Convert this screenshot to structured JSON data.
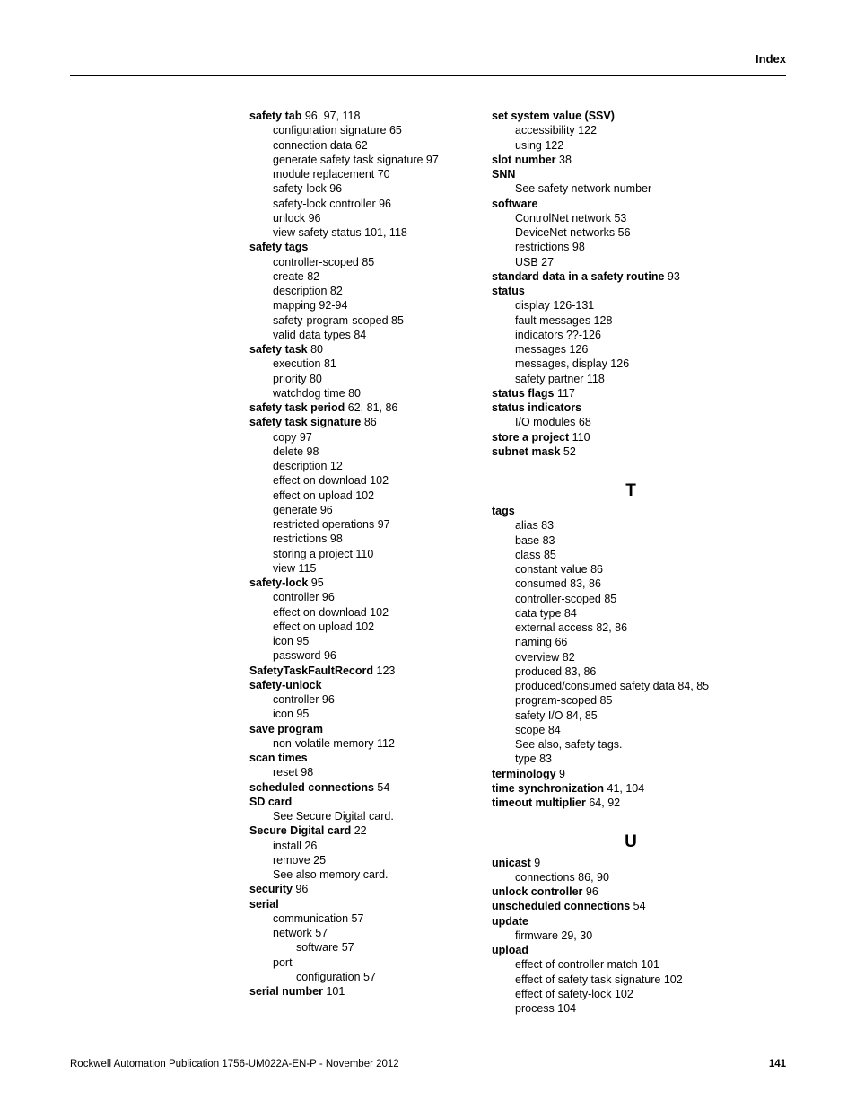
{
  "header": {
    "label": "Index"
  },
  "footer": {
    "text": "Rockwell Automation Publication 1756-UM022A-EN-P - November 2012",
    "page": "141"
  },
  "left": [
    {
      "lvl": 0,
      "term": "safety tab",
      "pages": " 96, 97, 118"
    },
    {
      "lvl": 1,
      "text": "configuration signature 65"
    },
    {
      "lvl": 1,
      "text": "connection data 62"
    },
    {
      "lvl": 1,
      "text": "generate safety task signature 97"
    },
    {
      "lvl": 1,
      "text": "module replacement 70"
    },
    {
      "lvl": 1,
      "text": "safety-lock 96"
    },
    {
      "lvl": 1,
      "text": "safety-lock controller 96"
    },
    {
      "lvl": 1,
      "text": "unlock 96"
    },
    {
      "lvl": 1,
      "text": "view safety status 101, 118"
    },
    {
      "lvl": 0,
      "term": "safety tags",
      "pages": ""
    },
    {
      "lvl": 1,
      "text": "controller-scoped 85"
    },
    {
      "lvl": 1,
      "text": "create 82"
    },
    {
      "lvl": 1,
      "text": "description 82"
    },
    {
      "lvl": 1,
      "text": "mapping 92-94"
    },
    {
      "lvl": 1,
      "text": "safety-program-scoped 85"
    },
    {
      "lvl": 1,
      "text": "valid data types 84"
    },
    {
      "lvl": 0,
      "term": "safety task",
      "pages": " 80"
    },
    {
      "lvl": 1,
      "text": "execution 81"
    },
    {
      "lvl": 1,
      "text": "priority 80"
    },
    {
      "lvl": 1,
      "text": "watchdog time 80"
    },
    {
      "lvl": 0,
      "term": "safety task period",
      "pages": " 62, 81, 86"
    },
    {
      "lvl": 0,
      "term": "safety task signature",
      "pages": " 86"
    },
    {
      "lvl": 1,
      "text": "copy 97"
    },
    {
      "lvl": 1,
      "text": "delete 98"
    },
    {
      "lvl": 1,
      "text": "description 12"
    },
    {
      "lvl": 1,
      "text": "effect on download 102"
    },
    {
      "lvl": 1,
      "text": "effect on upload 102"
    },
    {
      "lvl": 1,
      "text": "generate 96"
    },
    {
      "lvl": 1,
      "text": "restricted operations 97"
    },
    {
      "lvl": 1,
      "text": "restrictions 98"
    },
    {
      "lvl": 1,
      "text": "storing a project 110"
    },
    {
      "lvl": 1,
      "text": "view 115"
    },
    {
      "lvl": 0,
      "term": "safety-lock",
      "pages": " 95"
    },
    {
      "lvl": 1,
      "text": "controller 96"
    },
    {
      "lvl": 1,
      "text": "effect on download 102"
    },
    {
      "lvl": 1,
      "text": "effect on upload 102"
    },
    {
      "lvl": 1,
      "text": "icon 95"
    },
    {
      "lvl": 1,
      "text": "password 96"
    },
    {
      "lvl": 0,
      "term": "SafetyTaskFaultRecord",
      "pages": " 123"
    },
    {
      "lvl": 0,
      "term": "safety-unlock",
      "pages": ""
    },
    {
      "lvl": 1,
      "text": "controller 96"
    },
    {
      "lvl": 1,
      "text": "icon 95"
    },
    {
      "lvl": 0,
      "term": "save program",
      "pages": ""
    },
    {
      "lvl": 1,
      "text": "non-volatile memory 112"
    },
    {
      "lvl": 0,
      "term": "scan times",
      "pages": ""
    },
    {
      "lvl": 1,
      "text": "reset 98"
    },
    {
      "lvl": 0,
      "term": "scheduled connections",
      "pages": " 54"
    },
    {
      "lvl": 0,
      "term": "SD card",
      "pages": ""
    },
    {
      "lvl": 1,
      "text": "See Secure Digital card."
    },
    {
      "lvl": 0,
      "term": "Secure Digital card",
      "pages": " 22"
    },
    {
      "lvl": 1,
      "text": "install 26"
    },
    {
      "lvl": 1,
      "text": "remove 25"
    },
    {
      "lvl": 1,
      "text": "See also memory card."
    },
    {
      "lvl": 0,
      "term": "security",
      "pages": " 96"
    },
    {
      "lvl": 0,
      "term": "serial",
      "pages": ""
    },
    {
      "lvl": 1,
      "text": "communication 57"
    },
    {
      "lvl": 1,
      "text": "network 57"
    },
    {
      "lvl": 2,
      "text": "software 57"
    },
    {
      "lvl": 1,
      "text": "port"
    },
    {
      "lvl": 2,
      "text": "configuration 57"
    },
    {
      "lvl": 0,
      "term": "serial number",
      "pages": " 101"
    }
  ],
  "right": [
    {
      "lvl": 0,
      "term": "set system value (SSV)",
      "pages": ""
    },
    {
      "lvl": 1,
      "text": "accessibility 122"
    },
    {
      "lvl": 1,
      "text": "using 122"
    },
    {
      "lvl": 0,
      "term": "slot number",
      "pages": " 38"
    },
    {
      "lvl": 0,
      "term": "SNN",
      "pages": ""
    },
    {
      "lvl": 1,
      "text": "See safety network number"
    },
    {
      "lvl": 0,
      "term": "software",
      "pages": ""
    },
    {
      "lvl": 1,
      "text": "ControlNet network 53"
    },
    {
      "lvl": 1,
      "text": "DeviceNet networks 56"
    },
    {
      "lvl": 1,
      "text": "restrictions 98"
    },
    {
      "lvl": 1,
      "text": "USB 27"
    },
    {
      "lvl": 0,
      "term": "standard data in a safety routine",
      "pages": " 93"
    },
    {
      "lvl": 0,
      "term": "status",
      "pages": ""
    },
    {
      "lvl": 1,
      "text": "display 126-131"
    },
    {
      "lvl": 1,
      "text": "fault messages 128"
    },
    {
      "lvl": 1,
      "text": "indicators ??-126"
    },
    {
      "lvl": 1,
      "text": "messages 126"
    },
    {
      "lvl": 1,
      "text": "messages, display 126"
    },
    {
      "lvl": 1,
      "text": "safety partner 118"
    },
    {
      "lvl": 0,
      "term": "status flags",
      "pages": " 117"
    },
    {
      "lvl": 0,
      "term": "status indicators",
      "pages": ""
    },
    {
      "lvl": 1,
      "text": "I/O modules 68"
    },
    {
      "lvl": 0,
      "term": "store a project",
      "pages": " 110"
    },
    {
      "lvl": 0,
      "term": "subnet mask",
      "pages": " 52"
    },
    {
      "letter": "T"
    },
    {
      "lvl": 0,
      "term": "tags",
      "pages": ""
    },
    {
      "lvl": 1,
      "text": "alias 83"
    },
    {
      "lvl": 1,
      "text": "base 83"
    },
    {
      "lvl": 1,
      "text": "class 85"
    },
    {
      "lvl": 1,
      "text": "constant value 86"
    },
    {
      "lvl": 1,
      "text": "consumed 83, 86"
    },
    {
      "lvl": 1,
      "text": "controller-scoped 85"
    },
    {
      "lvl": 1,
      "text": "data type 84"
    },
    {
      "lvl": 1,
      "text": "external access 82, 86"
    },
    {
      "lvl": 1,
      "text": "naming 66"
    },
    {
      "lvl": 1,
      "text": "overview 82"
    },
    {
      "lvl": 1,
      "text": "produced 83, 86"
    },
    {
      "lvl": 1,
      "text": "produced/consumed safety data 84, 85"
    },
    {
      "lvl": 1,
      "text": "program-scoped 85"
    },
    {
      "lvl": 1,
      "text": "safety I/O 84, 85"
    },
    {
      "lvl": 1,
      "text": "scope 84"
    },
    {
      "lvl": 1,
      "text": "See also, safety tags."
    },
    {
      "lvl": 1,
      "text": "type 83"
    },
    {
      "lvl": 0,
      "term": "terminology",
      "pages": " 9"
    },
    {
      "lvl": 0,
      "term": "time synchronization",
      "pages": " 41, 104"
    },
    {
      "lvl": 0,
      "term": "timeout multiplier",
      "pages": " 64, 92"
    },
    {
      "letter": "U"
    },
    {
      "lvl": 0,
      "term": "unicast",
      "pages": " 9"
    },
    {
      "lvl": 1,
      "text": "connections 86, 90"
    },
    {
      "lvl": 0,
      "term": "unlock controller",
      "pages": " 96"
    },
    {
      "lvl": 0,
      "term": "unscheduled connections",
      "pages": " 54"
    },
    {
      "lvl": 0,
      "term": "update",
      "pages": ""
    },
    {
      "lvl": 1,
      "text": "firmware 29, 30"
    },
    {
      "lvl": 0,
      "term": "upload",
      "pages": ""
    },
    {
      "lvl": 1,
      "text": "effect of controller match 101"
    },
    {
      "lvl": 1,
      "text": "effect of safety task signature 102"
    },
    {
      "lvl": 1,
      "text": "effect of safety-lock 102"
    },
    {
      "lvl": 1,
      "text": "process 104"
    }
  ]
}
